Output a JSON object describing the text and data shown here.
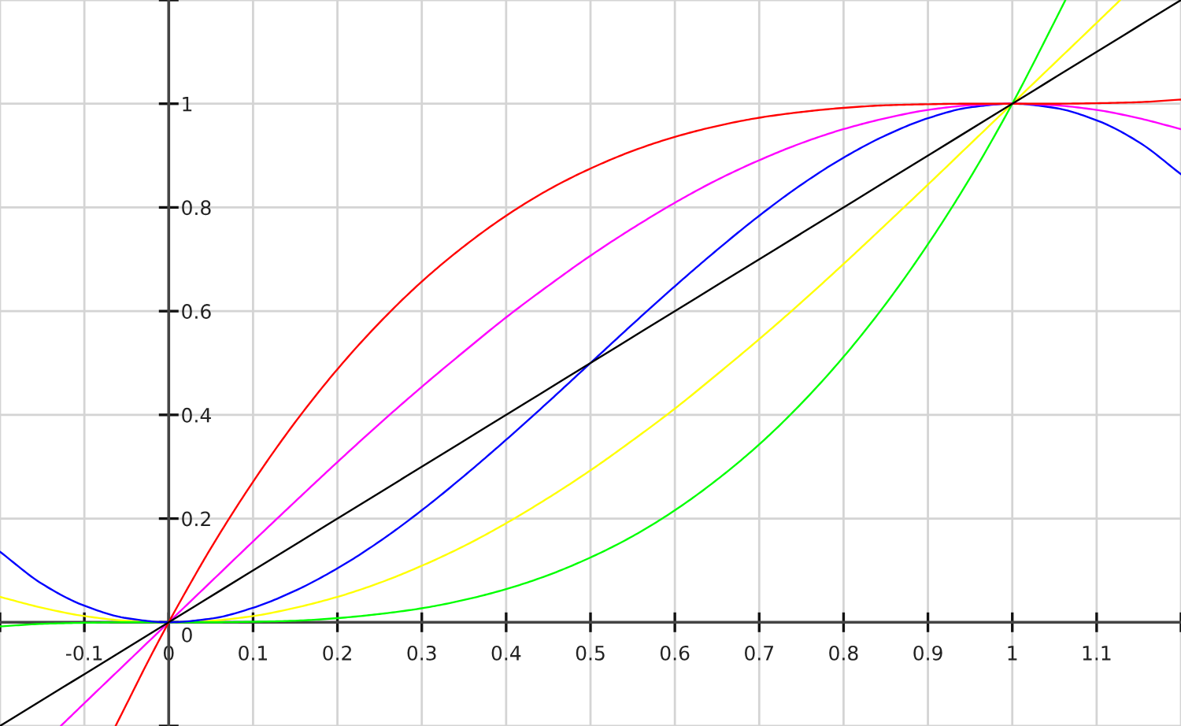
{
  "chart_data": {
    "type": "line",
    "xlim": [
      -0.2,
      1.2
    ],
    "ylim": [
      -0.2,
      1.2
    ],
    "xticks": [
      {
        "value": -0.2,
        "label": null
      },
      -0.1,
      0,
      0.1,
      0.2,
      0.3,
      0.4,
      0.5,
      0.6,
      0.7,
      0.8,
      0.9,
      1,
      1.1,
      {
        "value": 1.2,
        "label": null
      }
    ],
    "yticks": [
      {
        "value": -0.2,
        "label": null
      },
      0,
      0.2,
      0.4,
      0.6,
      0.8,
      1,
      {
        "value": 1.2,
        "label": null
      }
    ],
    "grid": true,
    "line_style": "solid",
    "series": [
      {
        "color": "#ffff00",
        "x": [
          -0.2,
          -0.15,
          -0.1,
          -0.05,
          0,
          0.05,
          0.1,
          0.15,
          0.2,
          0.25,
          0.3,
          0.35,
          0.4,
          0.45,
          0.5,
          0.55,
          0.6,
          0.65,
          0.7,
          0.75,
          0.8,
          0.85,
          0.9,
          0.95,
          1,
          1.05,
          1.1,
          1.128
        ],
        "values": [
          0.049,
          0.028,
          0.012,
          0.003,
          0,
          0.003,
          0.012,
          0.028,
          0.049,
          0.076,
          0.109,
          0.147,
          0.191,
          0.24,
          0.293,
          0.351,
          0.412,
          0.478,
          0.546,
          0.617,
          0.691,
          0.767,
          0.844,
          0.922,
          1,
          1.078,
          1.156,
          1.2
        ]
      },
      {
        "color": "#00ff00",
        "x": [
          -0.2,
          -0.15,
          -0.1,
          -0.05,
          0,
          0.05,
          0.1,
          0.15,
          0.2,
          0.25,
          0.3,
          0.35,
          0.4,
          0.45,
          0.5,
          0.55,
          0.6,
          0.65,
          0.7,
          0.75,
          0.8,
          0.85,
          0.9,
          0.95,
          1,
          1.05,
          1.063
        ],
        "values": [
          -0.008,
          -0.003,
          -0.001,
          0,
          0,
          0,
          0.001,
          0.003,
          0.008,
          0.016,
          0.027,
          0.043,
          0.064,
          0.091,
          0.125,
          0.166,
          0.216,
          0.275,
          0.343,
          0.422,
          0.512,
          0.614,
          0.729,
          0.857,
          1,
          1.158,
          1.2
        ]
      },
      {
        "color": "#0000ff",
        "x": [
          -0.2,
          -0.15,
          -0.1,
          -0.05,
          0,
          0.05,
          0.1,
          0.15,
          0.2,
          0.25,
          0.3,
          0.35,
          0.4,
          0.45,
          0.5,
          0.55,
          0.6,
          0.65,
          0.7,
          0.75,
          0.8,
          0.85,
          0.9,
          0.95,
          1,
          1.05,
          1.1,
          1.15,
          1.2
        ],
        "values": [
          0.136,
          0.074,
          0.032,
          0.008,
          0,
          0.007,
          0.028,
          0.061,
          0.104,
          0.156,
          0.216,
          0.282,
          0.352,
          0.425,
          0.5,
          0.575,
          0.648,
          0.718,
          0.784,
          0.844,
          0.896,
          0.939,
          0.972,
          0.993,
          1,
          0.992,
          0.968,
          0.926,
          0.864
        ]
      },
      {
        "color": "#ff00ff",
        "x": [
          -0.128,
          -0.1,
          -0.05,
          0,
          0.05,
          0.1,
          0.15,
          0.2,
          0.25,
          0.3,
          0.35,
          0.4,
          0.45,
          0.5,
          0.55,
          0.6,
          0.65,
          0.7,
          0.75,
          0.8,
          0.85,
          0.9,
          0.95,
          1,
          1.05,
          1.1,
          1.15,
          1.2
        ],
        "values": [
          -0.2,
          -0.156,
          -0.078,
          0,
          0.078,
          0.156,
          0.233,
          0.309,
          0.383,
          0.454,
          0.522,
          0.588,
          0.649,
          0.707,
          0.76,
          0.809,
          0.853,
          0.891,
          0.924,
          0.951,
          0.972,
          0.988,
          0.997,
          1,
          0.997,
          0.988,
          0.972,
          0.951
        ]
      },
      {
        "color": "#ff0000",
        "x": [
          -0.063,
          -0.05,
          -0.025,
          0,
          0.025,
          0.05,
          0.1,
          0.15,
          0.2,
          0.25,
          0.3,
          0.35,
          0.4,
          0.45,
          0.5,
          0.55,
          0.6,
          0.65,
          0.7,
          0.75,
          0.8,
          0.85,
          0.9,
          0.95,
          1,
          1.05,
          1.1,
          1.15,
          1.2
        ],
        "values": [
          -0.2,
          -0.158,
          -0.077,
          0,
          0.073,
          0.143,
          0.271,
          0.386,
          0.488,
          0.578,
          0.657,
          0.725,
          0.784,
          0.834,
          0.875,
          0.909,
          0.936,
          0.957,
          0.973,
          0.984,
          0.992,
          0.997,
          0.999,
          1,
          1,
          1,
          1.001,
          1.003,
          1.008
        ]
      },
      {
        "color": "#000000",
        "x": [
          -0.2,
          0,
          0.5,
          1,
          1.2
        ],
        "values": [
          -0.2,
          0,
          0.5,
          1,
          1.2
        ]
      }
    ]
  }
}
